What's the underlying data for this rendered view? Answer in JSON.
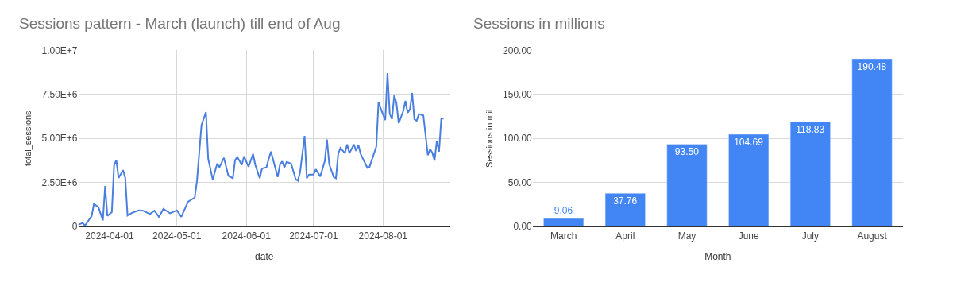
{
  "chart_data": [
    {
      "type": "line",
      "title": "Sessions pattern - March (launch) till end of Aug",
      "xlabel": "date",
      "ylabel": "total_sessions",
      "x": [
        "2024-03-18",
        "2024-03-20",
        "2024-03-21",
        "2024-03-24",
        "2024-03-25",
        "2024-03-27",
        "2024-03-29",
        "2024-03-30",
        "2024-03-31",
        "2024-04-02",
        "2024-04-03",
        "2024-04-04",
        "2024-04-05",
        "2024-04-07",
        "2024-04-08",
        "2024-04-09",
        "2024-04-11",
        "2024-04-14",
        "2024-04-16",
        "2024-04-19",
        "2024-04-21",
        "2024-04-23",
        "2024-04-25",
        "2024-04-28",
        "2024-05-01",
        "2024-05-03",
        "2024-05-06",
        "2024-05-09",
        "2024-05-10",
        "2024-05-12",
        "2024-05-14",
        "2024-05-15",
        "2024-05-17",
        "2024-05-19",
        "2024-05-20",
        "2024-05-22",
        "2024-05-24",
        "2024-05-26",
        "2024-05-27",
        "2024-05-28",
        "2024-05-30",
        "2024-05-31",
        "2024-06-02",
        "2024-06-04",
        "2024-06-05",
        "2024-06-07",
        "2024-06-08",
        "2024-06-10",
        "2024-06-11",
        "2024-06-12",
        "2024-06-15",
        "2024-06-16",
        "2024-06-17",
        "2024-06-18",
        "2024-06-19",
        "2024-06-21",
        "2024-06-23",
        "2024-06-24",
        "2024-06-25",
        "2024-06-27",
        "2024-06-28",
        "2024-06-29",
        "2024-07-01",
        "2024-07-02",
        "2024-07-04",
        "2024-07-06",
        "2024-07-07",
        "2024-07-08",
        "2024-07-10",
        "2024-07-11",
        "2024-07-12",
        "2024-07-13",
        "2024-07-15",
        "2024-07-16",
        "2024-07-17",
        "2024-07-19",
        "2024-07-20",
        "2024-07-21",
        "2024-07-22",
        "2024-07-25",
        "2024-07-26",
        "2024-07-29",
        "2024-07-30",
        "2024-07-31",
        "2024-08-02",
        "2024-08-03",
        "2024-08-04",
        "2024-08-05",
        "2024-08-06",
        "2024-08-07",
        "2024-08-08",
        "2024-08-10",
        "2024-08-11",
        "2024-08-12",
        "2024-08-13",
        "2024-08-14",
        "2024-08-15",
        "2024-08-16",
        "2024-08-17",
        "2024-08-19",
        "2024-08-21",
        "2024-08-22",
        "2024-08-23",
        "2024-08-24",
        "2024-08-25",
        "2024-08-26",
        "2024-08-27",
        "2024-08-28"
      ],
      "series": [
        {
          "color": "#4a7fe0",
          "values": [
            100000,
            200000,
            50000,
            600000,
            1280000,
            1100000,
            350000,
            2300000,
            600000,
            820000,
            3470000,
            3780000,
            2760000,
            3200000,
            2760000,
            620000,
            780000,
            920000,
            900000,
            710000,
            900000,
            550000,
            1000000,
            750000,
            920000,
            550000,
            1410000,
            1650000,
            2600000,
            5760000,
            6490000,
            3840000,
            2670000,
            3570000,
            3360000,
            3900000,
            2880000,
            2740000,
            3770000,
            3940000,
            3500000,
            3980000,
            3390000,
            4120000,
            3500000,
            2740000,
            3290000,
            3360000,
            3840000,
            4250000,
            2810000,
            3500000,
            3700000,
            3360000,
            3670000,
            3570000,
            2700000,
            2600000,
            3090000,
            5140000,
            2740000,
            2950000,
            2950000,
            3250000,
            2840000,
            3700000,
            4940000,
            3530000,
            2810000,
            2740000,
            4120000,
            4460000,
            4160000,
            4660000,
            4160000,
            4660000,
            4290000,
            4640000,
            4120000,
            3330000,
            3390000,
            4530000,
            7070000,
            6680000,
            6040000,
            8710000,
            6410000,
            6100000,
            7450000,
            7000000,
            5860000,
            6540000,
            7130000,
            6450000,
            6650000,
            7580000,
            6080000,
            6000000,
            6380000,
            6310000,
            4050000,
            4390000,
            4190000,
            3740000,
            4870000,
            4250000,
            6130000,
            6130000
          ]
        }
      ],
      "xlim": [
        "2024-03-18",
        "2024-08-31"
      ],
      "xticks": [
        {
          "value": "2024-04-01",
          "label": "2024-04-01"
        },
        {
          "value": "2024-05-01",
          "label": "2024-05-01"
        },
        {
          "value": "2024-06-01",
          "label": "2024-06-01"
        },
        {
          "value": "2024-07-01",
          "label": "2024-07-01"
        },
        {
          "value": "2024-08-01",
          "label": "2024-08-01"
        }
      ],
      "ylim": [
        0,
        10000000
      ],
      "yticks": [
        0,
        {
          "value": 2500000,
          "label": "2.50E+6"
        },
        {
          "value": 5000000,
          "label": "5.00E+6"
        },
        {
          "value": 7500000,
          "label": "7.50E+6"
        },
        {
          "value": 10000000,
          "label": "1.00E+7"
        }
      ],
      "grid": true,
      "line_style": "solid",
      "marker": "none"
    },
    {
      "type": "bar",
      "title": "Sessions in millions",
      "xlabel": "Month",
      "ylabel": "Sessions in mil",
      "categories": [
        "March",
        "April",
        "May",
        "June",
        "July",
        "August"
      ],
      "values": [
        9.06,
        37.76,
        93.5,
        104.69,
        118.83,
        190.48
      ],
      "value_labels": [
        "9.06",
        "37.76",
        "93.50",
        "104.69",
        "118.83",
        "190.48"
      ],
      "color": "#4285f4",
      "ylim": [
        0,
        200
      ],
      "yticks": [
        {
          "value": 0,
          "label": "0.00"
        },
        {
          "value": 50,
          "label": "50.00"
        },
        {
          "value": 100,
          "label": "100.00"
        },
        {
          "value": 150,
          "label": "150.00"
        },
        {
          "value": 200,
          "label": "200.00"
        }
      ],
      "grid": "y"
    }
  ]
}
